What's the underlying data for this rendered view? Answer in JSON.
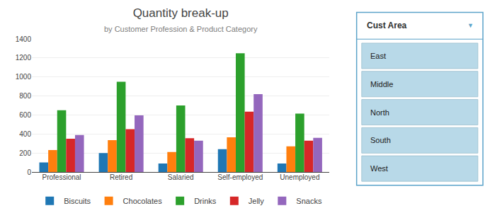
{
  "chart_data": {
    "type": "bar",
    "title": "Quantity break-up",
    "subtitle": "by Customer Profession & Product Category",
    "categories": [
      "Professional",
      "Retired",
      "Salaried",
      "Self-employed",
      "Unemployed"
    ],
    "series": [
      {
        "name": "Biscuits",
        "values": [
          100,
          200,
          90,
          240,
          90
        ]
      },
      {
        "name": "Chocolates",
        "values": [
          230,
          335,
          210,
          365,
          270
        ]
      },
      {
        "name": "Drinks",
        "values": [
          650,
          950,
          700,
          1250,
          615
        ]
      },
      {
        "name": "Jelly",
        "values": [
          350,
          450,
          355,
          635,
          330
        ]
      },
      {
        "name": "Snacks",
        "values": [
          390,
          595,
          330,
          820,
          360
        ]
      }
    ],
    "ylim": [
      0,
      1400
    ],
    "yticks": [
      0,
      200,
      400,
      600,
      800,
      1000,
      1200,
      1400
    ],
    "grid": true,
    "legend": "bottom",
    "annotations": [
      "Cust Area",
      "▼",
      "East",
      "Middle",
      "North",
      "South",
      "West"
    ]
  }
}
